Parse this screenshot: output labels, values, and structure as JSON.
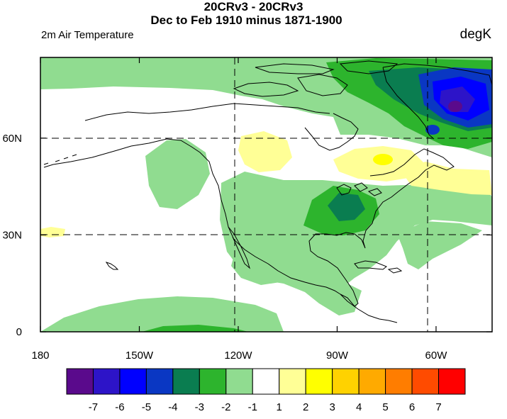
{
  "header": {
    "title_line1": "20CRv3 - 20CRv3",
    "title_line2": "Dec to Feb 1910 minus 1871-1900",
    "left_subtitle": "2m Air Temperature",
    "right_subtitle": "degK"
  },
  "chart_data": {
    "type": "heatmap",
    "variable": "2m Air Temperature",
    "units": "degK",
    "lon_range": [
      -180,
      -43
    ],
    "lat_range": [
      0,
      85
    ],
    "x_ticks": [
      {
        "value": -180,
        "label": "180"
      },
      {
        "value": -150,
        "label": "150W"
      },
      {
        "value": -120,
        "label": "120W"
      },
      {
        "value": -90,
        "label": "90W"
      },
      {
        "value": -60,
        "label": "60W"
      }
    ],
    "y_ticks": [
      {
        "value": 0,
        "label": "0"
      },
      {
        "value": 30,
        "label": "30N"
      },
      {
        "value": 60,
        "label": "60N"
      }
    ],
    "gridlines": {
      "lons": [
        -120,
        -60
      ],
      "lats": [
        30,
        60
      ],
      "style": "dashed"
    },
    "colorbar": {
      "labels": [
        "-7",
        "-6",
        "-5",
        "-4",
        "-3",
        "-2",
        "-1",
        "1",
        "2",
        "3",
        "4",
        "5",
        "6",
        "7"
      ],
      "colors": [
        "#5a0a8c",
        "#2d14c8",
        "#0000ff",
        "#0a37c3",
        "#0a7d50",
        "#2db42d",
        "#90dc90",
        "#ffffff",
        "#ffff96",
        "#ffff00",
        "#ffd200",
        "#ffaa00",
        "#ff7d00",
        "#ff4b00",
        "#ff0000"
      ]
    }
  }
}
